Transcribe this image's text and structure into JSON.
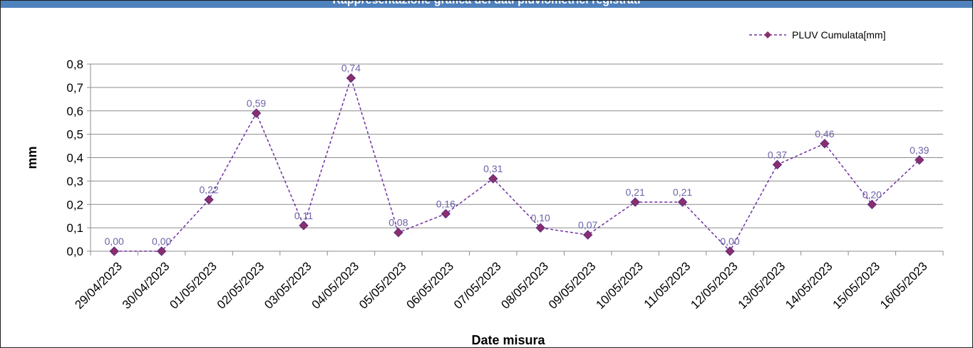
{
  "title": "Rappresentazione grafica dei dati pluviometrici registrati",
  "chart_data": {
    "type": "line",
    "title": "Rappresentazione grafica dei dati pluviometrici registrati",
    "xlabel": "Date misura",
    "ylabel": "mm",
    "ylim": [
      0,
      0.8
    ],
    "yticks": [
      "0,0",
      "0,1",
      "0,2",
      "0,3",
      "0,4",
      "0,5",
      "0,6",
      "0,7",
      "0,8"
    ],
    "grid": true,
    "legend_position": "top-right",
    "categories": [
      "29/04/2023",
      "30/04/2023",
      "01/05/2023",
      "02/05/2023",
      "03/05/2023",
      "04/05/2023",
      "05/05/2023",
      "06/05/2023",
      "07/05/2023",
      "08/05/2023",
      "09/05/2023",
      "10/05/2023",
      "11/05/2023",
      "12/05/2023",
      "13/05/2023",
      "14/05/2023",
      "15/05/2023",
      "16/05/2023"
    ],
    "series": [
      {
        "name": "PLUV Cumulata[mm]",
        "color": "#7030a0",
        "marker_color": "#8b2f6b",
        "values": [
          0.0,
          0.0,
          0.22,
          0.59,
          0.11,
          0.74,
          0.08,
          0.16,
          0.31,
          0.1,
          0.07,
          0.21,
          0.21,
          0.0,
          0.37,
          0.46,
          0.2,
          0.39
        ],
        "labels": [
          "0,00",
          "0,00",
          "0,22",
          "0,59",
          "0,11",
          "0,74",
          "0,08",
          "0,16",
          "0,31",
          "0,10",
          "0,07",
          "0,21",
          "0,21",
          "0,00",
          "0,37",
          "0,46",
          "0,20",
          "0,39"
        ]
      }
    ]
  }
}
